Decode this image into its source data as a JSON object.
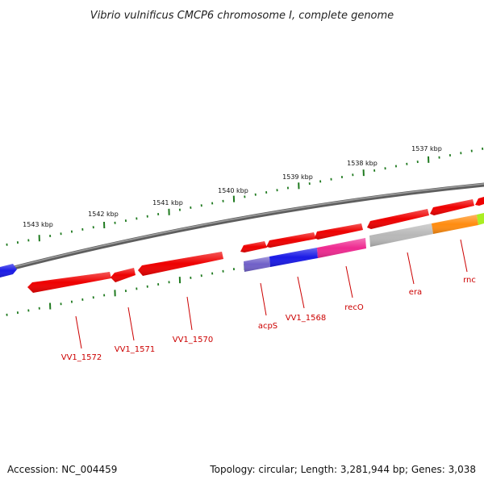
{
  "title": "Vibrio vulnificus CMCP6 chromosome I, complete genome",
  "footer": {
    "accession": "Accession: NC_004459",
    "summary": "Topology: circular; Length: 3,281,944 bp; Genes: 3,038"
  },
  "colors": {
    "backbone": "#7a7a7a",
    "tick": "#1f7a1f",
    "label": "#cc0000",
    "gene_red": "#ee0000",
    "gene_blue": "#1a1ae6",
    "gene_purple": "#7060c8",
    "gene_pink": "#ee2a90",
    "gene_gray": "#b8b8b8",
    "gene_orange": "#ff8c10",
    "gene_green": "#aaee22"
  },
  "kbp_labels": [
    "1543 kbp",
    "1542 kbp",
    "1541 kbp",
    "1540 kbp",
    "1539 kbp",
    "1538 kbp",
    "1537 kbp"
  ],
  "gene_labels": [
    "VV1_1572",
    "VV1_1571",
    "VV1_1570",
    "acpS",
    "VV1_1568",
    "recO",
    "era",
    "rnc"
  ]
}
